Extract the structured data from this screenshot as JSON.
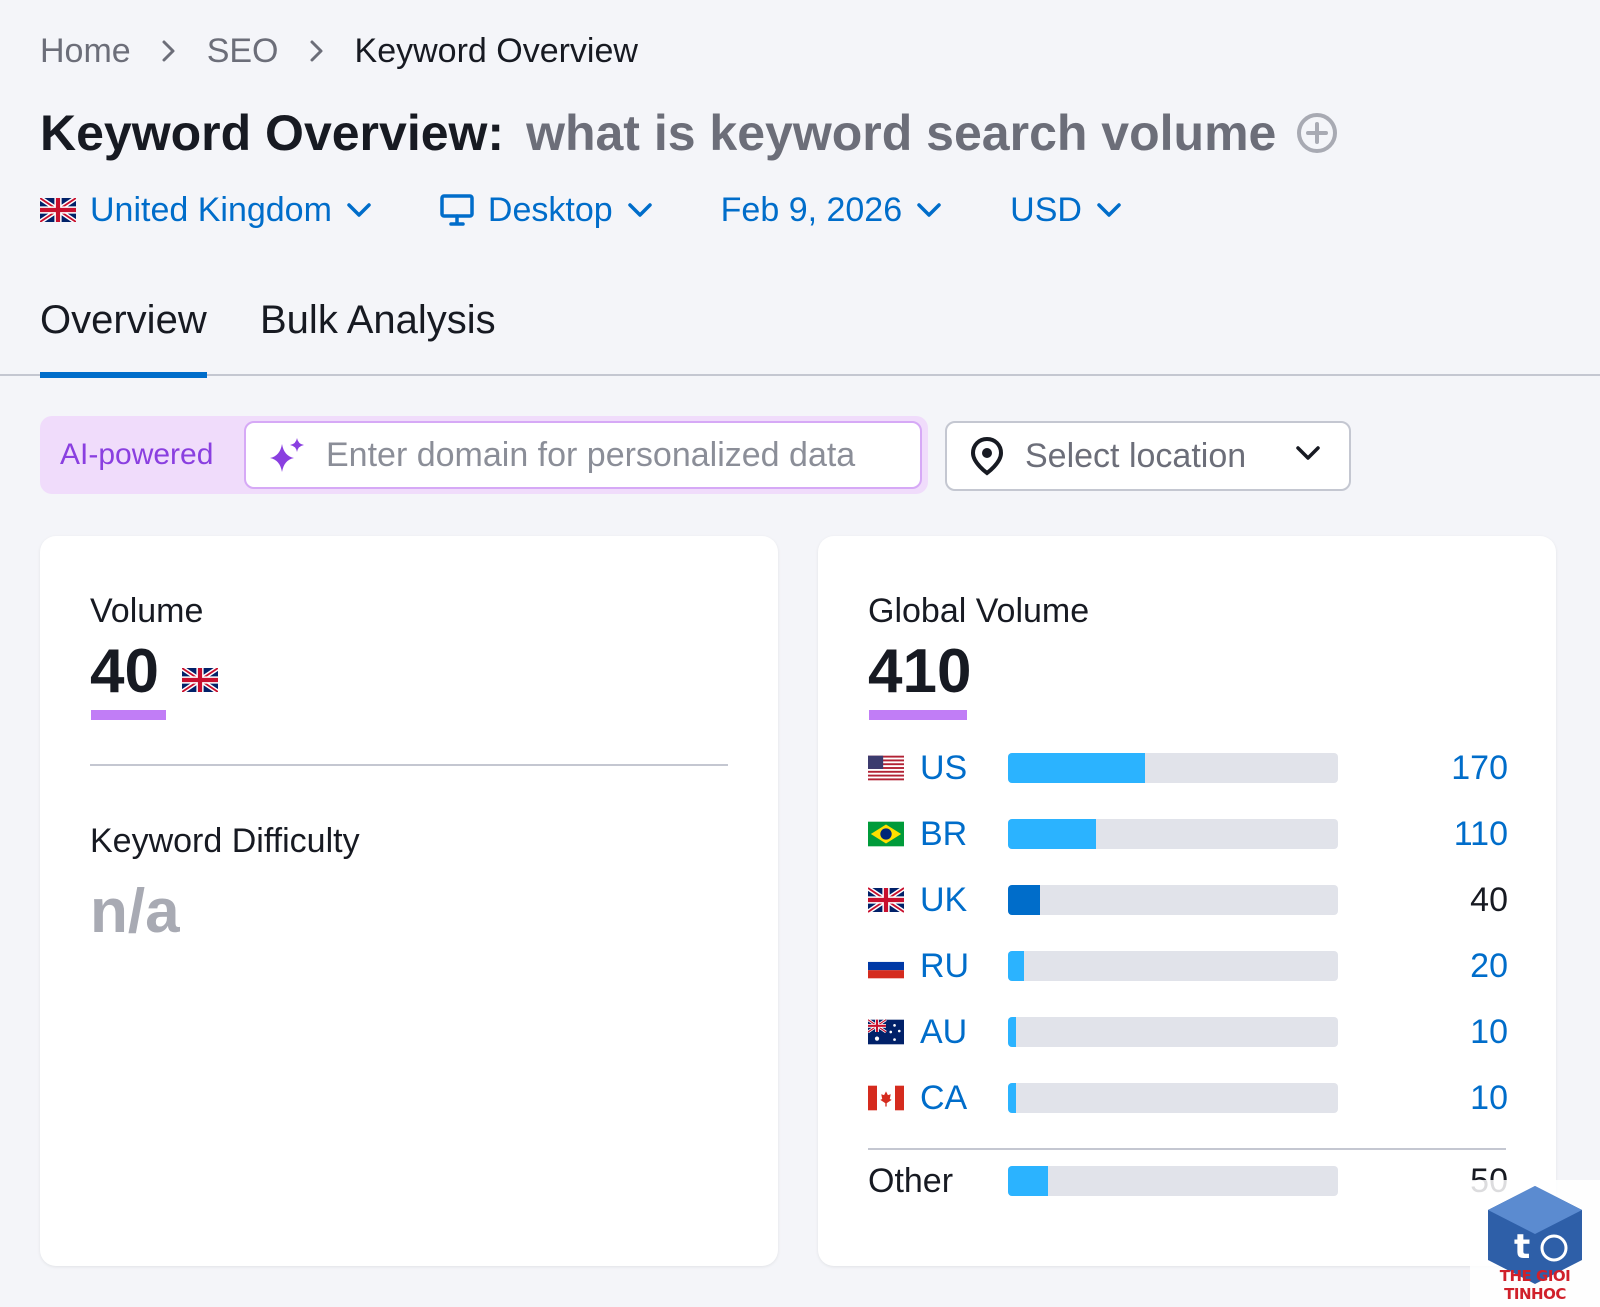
{
  "breadcrumb": {
    "home": "Home",
    "seo": "SEO",
    "current": "Keyword Overview"
  },
  "title": {
    "label": "Keyword Overview:",
    "keyword": "what is keyword search volume"
  },
  "filters": {
    "country": "United Kingdom",
    "device": "Desktop",
    "date": "Feb 9, 2026",
    "currency": "USD"
  },
  "tabs": {
    "overview": "Overview",
    "bulk": "Bulk Analysis"
  },
  "ai": {
    "badge": "AI-powered",
    "placeholder": "Enter domain for personalized data"
  },
  "location": {
    "placeholder": "Select location"
  },
  "volume": {
    "label": "Volume",
    "value": "40"
  },
  "difficulty": {
    "label": "Keyword Difficulty",
    "value": "n/a"
  },
  "global": {
    "label": "Global Volume",
    "value": "410",
    "rows": [
      {
        "code": "US",
        "value": "170",
        "share": 0.415
      },
      {
        "code": "BR",
        "value": "110",
        "share": 0.268
      },
      {
        "code": "UK",
        "value": "40",
        "share": 0.098
      },
      {
        "code": "RU",
        "value": "20",
        "share": 0.049
      },
      {
        "code": "AU",
        "value": "10",
        "share": 0.024
      },
      {
        "code": "CA",
        "value": "10",
        "share": 0.024
      }
    ],
    "other": {
      "label": "Other",
      "value": "50",
      "share": 0.122
    }
  },
  "watermark": {
    "text": "THE GIOI TINHOC"
  },
  "colors": {
    "accent": "#006dca",
    "bar": "#2bb3ff",
    "purple": "#c17df6"
  }
}
